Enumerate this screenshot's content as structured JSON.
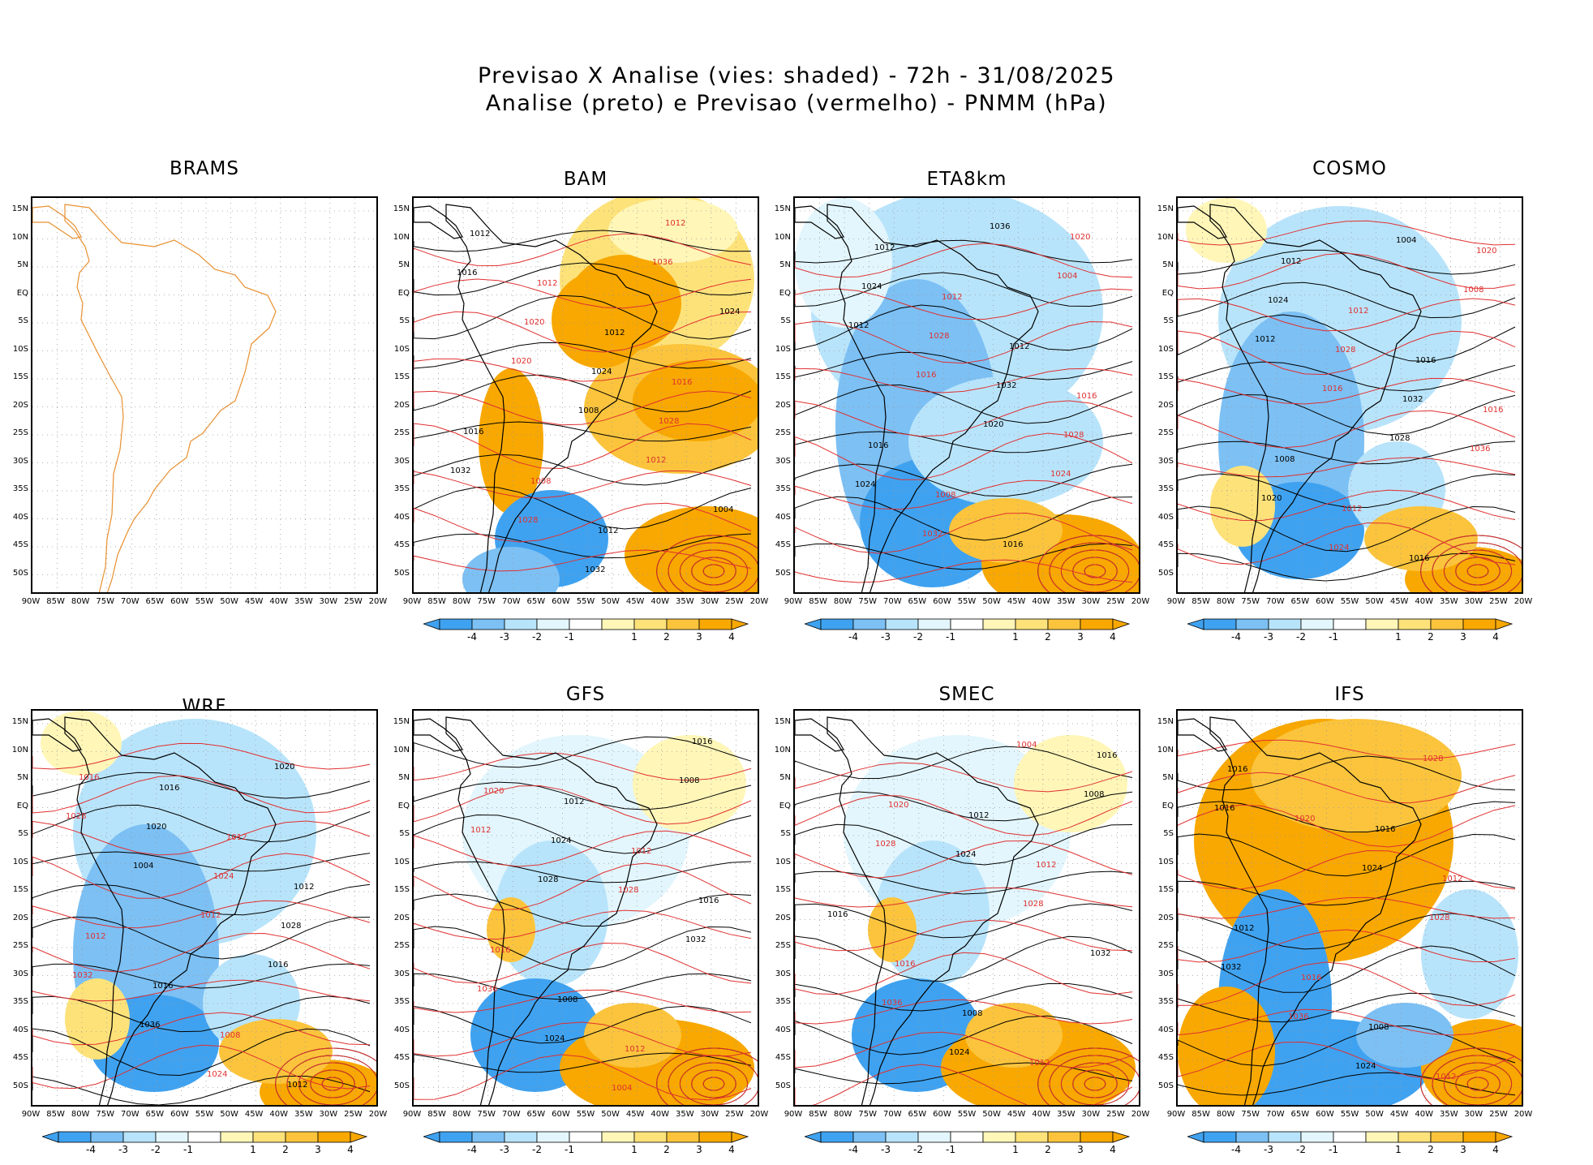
{
  "header": {
    "title_line1": "Previsao X Analise (vies: shaded) - 72h - 31/08/2025",
    "title_line2": "Analise (preto) e Previsao (vermelho) - PNMM (hPa)"
  },
  "colors": {
    "neg4": "#3fa2f0",
    "neg3": "#7cc0f4",
    "neg2": "#b8e4fb",
    "neg1": "#e3f6fd",
    "zero": "#ffffff",
    "pos1": "#fff6b8",
    "pos2": "#fde27a",
    "pos3": "#fbc43c",
    "pos4": "#f8a800",
    "analysis_contour": "#000000",
    "forecast_contour": "#e03030",
    "brams_coast": "#e89030"
  },
  "axes": {
    "lat_labels": [
      "15N",
      "10N",
      "5N",
      "EQ",
      "5S",
      "10S",
      "15S",
      "20S",
      "25S",
      "30S",
      "35S",
      "40S",
      "45S",
      "50S"
    ],
    "lon_labels": [
      "90W",
      "85W",
      "80W",
      "75W",
      "70W",
      "65W",
      "60W",
      "55W",
      "50W",
      "45W",
      "40W",
      "35W",
      "30W",
      "25W",
      "20W"
    ]
  },
  "colorbar": {
    "labels": [
      "-4",
      "-3",
      "-2",
      "-1",
      "1",
      "2",
      "3",
      "4"
    ]
  },
  "panels": [
    {
      "name": "BRAMS",
      "kind": "empty",
      "bias": "none",
      "isolines": []
    },
    {
      "name": "BAM",
      "kind": "bias",
      "bias": "warm-north",
      "isolines": [
        "1012",
        "1012",
        "1012",
        "1016",
        "1016",
        "1008",
        "1012",
        "1012",
        "1016",
        "1020",
        "1024",
        "1028",
        "1032",
        "1028",
        "1032",
        "1036",
        "1024",
        "1020",
        "1008",
        "1012",
        "1004"
      ]
    },
    {
      "name": "ETA8km",
      "kind": "bias",
      "bias": "cool",
      "isolines": [
        "1012",
        "1012",
        "1012",
        "1016",
        "1016",
        "1008",
        "1016",
        "1020",
        "1024",
        "1028",
        "1032",
        "1028",
        "1024",
        "1032",
        "1036",
        "1004",
        "1012",
        "1016",
        "1020",
        "1024"
      ]
    },
    {
      "name": "COSMO",
      "kind": "bias",
      "bias": "cool-mixed",
      "isolines": [
        "1012",
        "1012",
        "1016",
        "1016",
        "1008",
        "1012",
        "1016",
        "1020",
        "1024",
        "1028",
        "1032",
        "1036",
        "1020",
        "1024",
        "1004",
        "1008",
        "1012",
        "1016",
        "1028"
      ]
    },
    {
      "name": "WRF",
      "kind": "bias",
      "bias": "cool-mixed",
      "isolines": [
        "1016",
        "1012",
        "1012",
        "1012",
        "1016",
        "1008",
        "1012",
        "1016",
        "1020",
        "1024",
        "1028",
        "1032",
        "1036",
        "1024",
        "1020",
        "1028",
        "1004",
        "1012",
        "1016"
      ]
    },
    {
      "name": "GFS",
      "kind": "bias",
      "bias": "mild",
      "isolines": [
        "1012",
        "1012",
        "1016",
        "1016",
        "1008",
        "1012",
        "1016",
        "1020",
        "1024",
        "1028",
        "1032",
        "1036",
        "1024",
        "1004",
        "1008",
        "1012",
        "1028"
      ]
    },
    {
      "name": "SMEC",
      "kind": "bias",
      "bias": "mild",
      "isolines": [
        "1012",
        "1012",
        "1016",
        "1016",
        "1008",
        "1012",
        "1016",
        "1020",
        "1024",
        "1028",
        "1032",
        "1036",
        "1024",
        "1004",
        "1008",
        "1028"
      ]
    },
    {
      "name": "IFS",
      "kind": "bias",
      "bias": "strong-warm",
      "isolines": [
        "1016",
        "1012",
        "1012",
        "1016",
        "1008",
        "1012",
        "1016",
        "1020",
        "1024",
        "1028",
        "1032",
        "1036",
        "1024",
        "1028",
        "1016"
      ]
    }
  ]
}
